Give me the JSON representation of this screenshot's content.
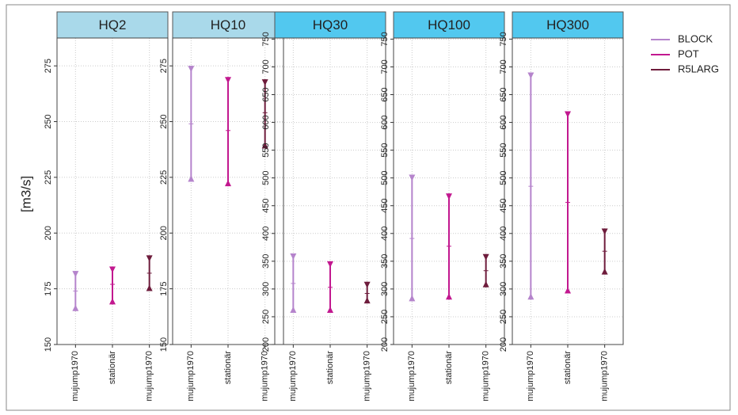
{
  "chart_data": [
    {
      "type": "errorbar",
      "title": "HQ2",
      "header_color": "#a9d9ea",
      "ylabel": "[m3/s]",
      "categories": [
        "mujump1970",
        "stationär",
        "mujump1970"
      ],
      "series": [
        {
          "name": "BLOCK",
          "color": "#b584cc",
          "values": [
            174,
            null,
            null
          ],
          "low": [
            165,
            null,
            null
          ],
          "high": [
            183,
            null,
            null
          ]
        },
        {
          "name": "POT",
          "color": "#c2188f",
          "values": [
            null,
            177,
            null
          ],
          "low": [
            null,
            168,
            null
          ],
          "high": [
            null,
            185,
            null
          ]
        },
        {
          "name": "R5LARG",
          "color": "#6e1c3c",
          "values": [
            null,
            null,
            182
          ],
          "low": [
            null,
            null,
            174
          ],
          "high": [
            null,
            null,
            190
          ]
        }
      ],
      "ylim": [
        150,
        287.5
      ],
      "yticks": [
        150,
        175,
        200,
        225,
        250,
        275
      ],
      "grid": true
    },
    {
      "type": "errorbar",
      "title": "HQ10",
      "header_color": "#a9d9ea",
      "categories": [
        "mujump1970",
        "stationär",
        "mujump1970"
      ],
      "series": [
        {
          "name": "BLOCK",
          "color": "#b584cc",
          "values": [
            249,
            null,
            null
          ],
          "low": [
            223,
            null,
            null
          ],
          "high": [
            275,
            null,
            null
          ]
        },
        {
          "name": "POT",
          "color": "#c2188f",
          "values": [
            null,
            246,
            null
          ],
          "low": [
            null,
            221,
            null
          ],
          "high": [
            null,
            270,
            null
          ]
        },
        {
          "name": "R5LARG",
          "color": "#6e1c3c",
          "values": [
            null,
            null,
            254
          ],
          "low": [
            null,
            null,
            238
          ],
          "high": [
            null,
            null,
            269
          ]
        }
      ],
      "ylim": [
        150,
        287.5
      ],
      "yticks": [
        150,
        175,
        200,
        225,
        250,
        275
      ],
      "grid": true
    },
    {
      "type": "errorbar",
      "title": "HQ30",
      "header_color": "#52c8ef",
      "categories": [
        "mujump1970",
        "stationär",
        "mujump1970"
      ],
      "series": [
        {
          "name": "BLOCK",
          "color": "#b584cc",
          "values": [
            310,
            null,
            null
          ],
          "low": [
            257,
            null,
            null
          ],
          "high": [
            364,
            null,
            null
          ]
        },
        {
          "name": "POT",
          "color": "#c2188f",
          "values": [
            null,
            303,
            null
          ],
          "low": [
            null,
            257,
            null
          ],
          "high": [
            null,
            350,
            null
          ]
        },
        {
          "name": "R5LARG",
          "color": "#6e1c3c",
          "values": [
            null,
            null,
            292
          ],
          "low": [
            null,
            null,
            274
          ],
          "high": [
            null,
            null,
            313
          ]
        }
      ],
      "ylim": [
        200,
        752
      ],
      "yticks": [
        200,
        250,
        300,
        350,
        400,
        450,
        500,
        550,
        600,
        650,
        700,
        750
      ],
      "grid": true
    },
    {
      "type": "errorbar",
      "title": "HQ100",
      "header_color": "#52c8ef",
      "categories": [
        "mujump1970",
        "stationär",
        "mujump1970"
      ],
      "series": [
        {
          "name": "BLOCK",
          "color": "#b584cc",
          "values": [
            391,
            null,
            null
          ],
          "low": [
            278,
            null,
            null
          ],
          "high": [
            506,
            null,
            null
          ]
        },
        {
          "name": "POT",
          "color": "#c2188f",
          "values": [
            null,
            377,
            null
          ],
          "low": [
            null,
            281,
            null
          ],
          "high": [
            null,
            472,
            null
          ]
        },
        {
          "name": "R5LARG",
          "color": "#6e1c3c",
          "values": [
            null,
            null,
            333
          ],
          "low": [
            null,
            null,
            303
          ],
          "high": [
            null,
            null,
            363
          ]
        }
      ],
      "ylim": [
        200,
        752
      ],
      "yticks": [
        200,
        250,
        300,
        350,
        400,
        450,
        500,
        550,
        600,
        650,
        700,
        750
      ],
      "grid": true
    },
    {
      "type": "errorbar",
      "title": "HQ300",
      "header_color": "#52c8ef",
      "categories": [
        "mujump1970",
        "stationär",
        "mujump1970"
      ],
      "series": [
        {
          "name": "BLOCK",
          "color": "#b584cc",
          "values": [
            485,
            null,
            null
          ],
          "low": [
            281,
            null,
            null
          ],
          "high": [
            690,
            null,
            null
          ]
        },
        {
          "name": "POT",
          "color": "#c2188f",
          "values": [
            null,
            456,
            null
          ],
          "low": [
            null,
            292,
            null
          ],
          "high": [
            null,
            620,
            null
          ]
        },
        {
          "name": "R5LARG",
          "color": "#6e1c3c",
          "values": [
            null,
            null,
            368
          ],
          "low": [
            null,
            null,
            326
          ],
          "high": [
            null,
            null,
            409
          ]
        }
      ],
      "ylim": [
        200,
        752
      ],
      "yticks": [
        200,
        250,
        300,
        350,
        400,
        450,
        500,
        550,
        600,
        650,
        700,
        750
      ],
      "grid": true
    }
  ]
}
